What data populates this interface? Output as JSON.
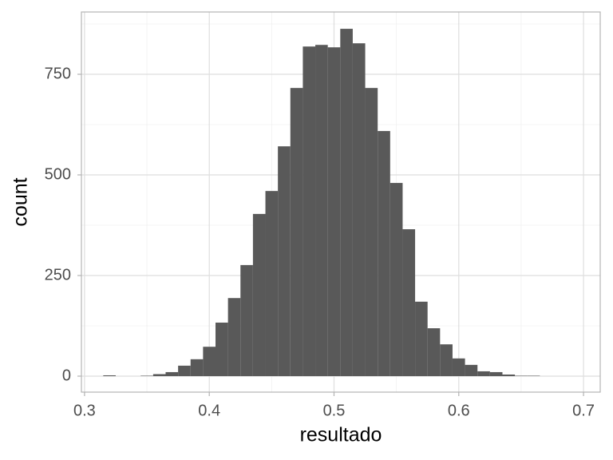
{
  "chart_data": {
    "type": "histogram",
    "x_label": "resultado",
    "y_label": "count",
    "bins": [
      0.315,
      0.325,
      0.335,
      0.345,
      0.355,
      0.365,
      0.375,
      0.385,
      0.395,
      0.405,
      0.415,
      0.425,
      0.435,
      0.445,
      0.455,
      0.465,
      0.475,
      0.485,
      0.495,
      0.505,
      0.515,
      0.525,
      0.535,
      0.545,
      0.555,
      0.565,
      0.575,
      0.585,
      0.595,
      0.605,
      0.615,
      0.625,
      0.635,
      0.645,
      0.655,
      0.665
    ],
    "values": [
      2,
      0,
      0,
      1,
      5,
      10,
      26,
      42,
      73,
      133,
      194,
      276,
      403,
      460,
      571,
      716,
      819,
      823,
      817,
      863,
      827,
      716,
      609,
      480,
      365,
      185,
      119,
      79,
      44,
      28,
      12,
      10,
      4,
      1,
      1
    ],
    "color": "#595959",
    "xlim": [
      0.2975,
      0.7134
    ],
    "ylim": [
      -39.7,
      904.8
    ],
    "xticks": [
      0.3,
      0.4,
      0.5,
      0.6,
      0.7
    ],
    "yticks": [
      0,
      250,
      500,
      750
    ],
    "xminor_ticks": [
      0.35,
      0.45,
      0.55,
      0.65
    ],
    "yminor_ticks": [
      125,
      375,
      625,
      875
    ],
    "grid": true
  }
}
